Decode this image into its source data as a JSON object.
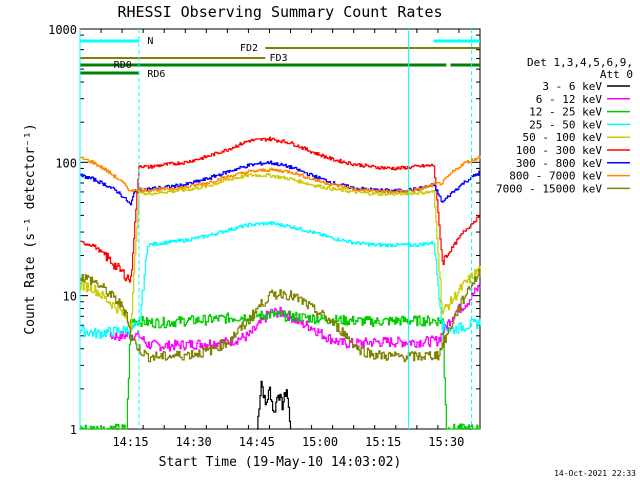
{
  "chart_data": {
    "type": "line",
    "title": "RHESSI Observing Summary Count Rates",
    "xlabel": "Start Time (19-May-10 14:03:02)",
    "ylabel": "Count Rate (s⁻¹ detector⁻¹)",
    "y_scale": "log",
    "ylim": [
      1,
      1000
    ],
    "y_ticks": [
      1,
      10,
      100,
      1000
    ],
    "y_tick_labels": [
      "1",
      "10",
      "100",
      "1000"
    ],
    "x_start": "14:03",
    "x_end": "15:38",
    "x_ticks": [
      "14:15",
      "14:30",
      "14:45",
      "15:00",
      "15:15",
      "15:30"
    ],
    "x_tick_minutes": [
      12,
      27,
      42,
      57,
      72,
      87
    ],
    "legend_header": [
      "Det 1,3,4,5,6,9,",
      "Att 0"
    ],
    "legend_position": "right",
    "series": [
      {
        "name": "3 - 6 keV",
        "color": "#000000",
        "x": [
          42,
          43,
          44,
          45,
          46,
          47,
          48,
          49,
          50
        ],
        "y": [
          1,
          2.3,
          1.5,
          2,
          1.3,
          1.9,
          1.5,
          2,
          1
        ]
      },
      {
        "name": "6 - 12 keV",
        "color": "#ff00ff",
        "x": [
          7,
          10,
          12,
          14,
          16,
          20,
          25,
          30,
          35,
          40,
          42,
          45,
          48,
          50,
          52,
          55,
          58,
          62,
          66,
          70,
          73,
          75,
          80,
          85,
          87,
          89,
          92,
          95
        ],
        "y": [
          5,
          5,
          5.1,
          5,
          4.3,
          4.2,
          4.3,
          4.4,
          4.5,
          5,
          5.8,
          7.5,
          7.5,
          7,
          6.3,
          5.8,
          5,
          4.4,
          4.4,
          4.5,
          4.5,
          4.5,
          4.5,
          4.6,
          6,
          7.5,
          9,
          12
        ]
      },
      {
        "name": "12 - 25 keV",
        "color": "#00cc00",
        "x": [
          0,
          4,
          8,
          11,
          12,
          14,
          16,
          20,
          25,
          30,
          35,
          40,
          45,
          50,
          55,
          60,
          65,
          70,
          75,
          80,
          86,
          87,
          90,
          95
        ],
        "y": [
          1,
          1,
          1,
          1,
          6.5,
          6.5,
          6.3,
          6.3,
          6.5,
          6.6,
          6.8,
          7,
          7.2,
          7,
          6.8,
          6.6,
          6.5,
          6.4,
          6.5,
          6.5,
          6.5,
          1,
          1,
          1
        ]
      },
      {
        "name": "25 - 50 keV",
        "color": "#00ffff",
        "x": [
          0,
          4,
          8,
          12,
          14,
          16,
          20,
          25,
          30,
          35,
          40,
          45,
          50,
          55,
          60,
          65,
          70,
          75,
          80,
          84,
          86,
          88,
          92,
          95
        ],
        "y": [
          5.5,
          5.2,
          5.4,
          5.6,
          6,
          24,
          25,
          26,
          28,
          31,
          34,
          35,
          33,
          30,
          27,
          25,
          24,
          24,
          24,
          25,
          6,
          5.5,
          6,
          6.3
        ]
      },
      {
        "name": "50 - 100 keV",
        "color": "#cccc00",
        "x": [
          0,
          3,
          6,
          9,
          11,
          12,
          14,
          16,
          20,
          25,
          30,
          35,
          40,
          45,
          50,
          55,
          60,
          65,
          70,
          75,
          80,
          84,
          86,
          88,
          91,
          95
        ],
        "y": [
          12,
          11.5,
          9.5,
          8,
          6.8,
          6,
          60,
          58,
          60,
          62,
          66,
          74,
          80,
          80,
          75,
          68,
          63,
          60,
          58,
          58,
          59,
          60,
          7.5,
          9,
          12,
          16
        ]
      },
      {
        "name": "100 - 300 keV",
        "color": "#ff0000",
        "x": [
          0,
          3,
          6,
          9,
          11,
          12,
          14,
          16,
          20,
          25,
          30,
          35,
          40,
          45,
          50,
          55,
          60,
          65,
          70,
          75,
          80,
          84,
          86,
          88,
          91,
          95
        ],
        "y": [
          25,
          24,
          20,
          16,
          14,
          13,
          95,
          92,
          96,
          100,
          110,
          125,
          145,
          150,
          140,
          120,
          105,
          97,
          92,
          90,
          93,
          95,
          18,
          22,
          30,
          40
        ]
      },
      {
        "name": "300 - 800 keV",
        "color": "#0000ff",
        "x": [
          0,
          3,
          6,
          9,
          11,
          12,
          13,
          16,
          20,
          25,
          30,
          35,
          40,
          45,
          50,
          55,
          60,
          65,
          70,
          75,
          80,
          84,
          86,
          88,
          91,
          95
        ],
        "y": [
          80,
          75,
          68,
          60,
          52,
          48,
          62,
          63,
          65,
          68,
          75,
          85,
          95,
          100,
          92,
          80,
          70,
          64,
          62,
          61,
          63,
          68,
          50,
          58,
          70,
          85
        ]
      },
      {
        "name": "800 - 7000 keV",
        "color": "#ff8800",
        "x": [
          0,
          3,
          6,
          9,
          11,
          12,
          13,
          16,
          20,
          25,
          30,
          35,
          40,
          45,
          50,
          55,
          60,
          65,
          70,
          75,
          80,
          84,
          86,
          88,
          91,
          95
        ],
        "y": [
          108,
          100,
          88,
          75,
          66,
          60,
          63,
          62,
          63,
          65,
          70,
          78,
          85,
          88,
          85,
          75,
          68,
          63,
          61,
          60,
          62,
          68,
          70,
          82,
          98,
          110
        ]
      },
      {
        "name": "7000 - 15000 keV",
        "color": "#808000",
        "x": [
          0,
          3,
          6,
          9,
          11,
          12,
          14,
          16,
          20,
          25,
          30,
          35,
          40,
          42,
          45,
          48,
          50,
          53,
          55,
          58,
          62,
          66,
          70,
          75,
          80,
          85,
          87,
          89,
          92,
          95
        ],
        "y": [
          14,
          13,
          11,
          9,
          7.5,
          5,
          4,
          3.5,
          3.5,
          3.6,
          3.8,
          4.5,
          6.5,
          8,
          10,
          10.5,
          10,
          9,
          8,
          7,
          5.5,
          4,
          3.6,
          3.5,
          3.5,
          3.6,
          5,
          7,
          11,
          15
        ]
      }
    ],
    "time_bars": [
      {
        "label": "N",
        "color": "#00ffff"
      },
      {
        "label": "FD2",
        "color": "#808000"
      },
      {
        "label": "FD3",
        "color": "#808000"
      },
      {
        "label": "RD0",
        "color": "#008000"
      },
      {
        "label": "RD6",
        "color": "#008000"
      }
    ],
    "timestamp": "14-Oct-2021 22:33"
  }
}
